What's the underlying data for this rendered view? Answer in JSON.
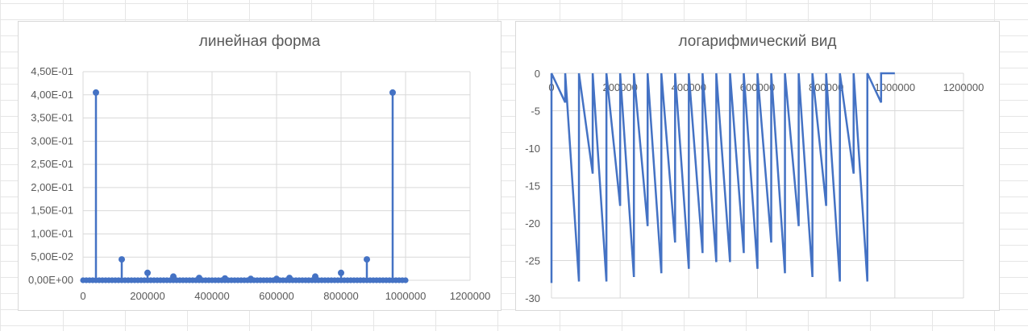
{
  "colors": {
    "series": "#4472c4",
    "gridline": "#d9d9d9",
    "axis_text": "#595959",
    "sheet_grid": "#e6e6e6"
  },
  "chart_data": [
    {
      "type": "scatter",
      "style": "stem-with-markers",
      "title": "линейная форма",
      "xlabel": "",
      "ylabel": "",
      "xlim": [
        0,
        1200000
      ],
      "ylim": [
        0,
        0.45
      ],
      "x_ticks": [
        0,
        200000,
        400000,
        600000,
        800000,
        1000000,
        1200000
      ],
      "x_tick_labels": [
        "0",
        "200000",
        "400000",
        "600000",
        "800000",
        "1000000",
        "1200000"
      ],
      "y_ticks": [
        0,
        0.05,
        0.1,
        0.15,
        0.2,
        0.25,
        0.3,
        0.35,
        0.4,
        0.45
      ],
      "y_tick_labels": [
        "0,00E+00",
        "5,00E-02",
        "1,00E-01",
        "1,50E-01",
        "2,00E-01",
        "2,50E-01",
        "3,00E-01",
        "3,50E-01",
        "4,00E-01",
        "4,50E-01"
      ],
      "grid": true,
      "legend": "none",
      "series": [
        {
          "x": [
            40000,
            120000,
            200000,
            280000,
            360000,
            440000,
            520000,
            600000,
            640000,
            720000,
            800000,
            880000,
            960000
          ],
          "y": [
            0.405,
            0.045,
            0.016,
            0.008,
            0.005,
            0.004,
            0.003,
            0.003,
            0.005,
            0.008,
            0.016,
            0.045,
            0.405
          ]
        }
      ],
      "baseline_markers": {
        "x_start": 0,
        "x_end": 1000000,
        "step": 10000,
        "y": 0
      }
    },
    {
      "type": "line",
      "style": "stem-lines-downward",
      "title": "логарифмический вид",
      "xlabel": "",
      "ylabel": "",
      "xlim": [
        0,
        1200000
      ],
      "ylim": [
        -30,
        0
      ],
      "x_ticks": [
        0,
        200000,
        400000,
        600000,
        800000,
        1000000,
        1200000
      ],
      "x_tick_labels": [
        "0",
        "200000",
        "400000",
        "600000",
        "800000",
        "1000000",
        "1200000"
      ],
      "x_axis_position": "top",
      "y_ticks": [
        0,
        -5,
        -10,
        -15,
        -20,
        -25,
        -30
      ],
      "y_tick_labels": [
        "0",
        "-5",
        "-10",
        "-15",
        "-20",
        "-25",
        "-30"
      ],
      "grid": true,
      "legend": "none",
      "series": [
        {
          "x": [
            0,
            40000,
            80000,
            120000,
            160000,
            200000,
            240000,
            280000,
            320000,
            360000,
            400000,
            440000,
            480000,
            520000,
            560000,
            600000,
            640000,
            680000,
            720000,
            760000,
            800000,
            840000,
            880000,
            920000,
            960000,
            1000000
          ],
          "y": [
            -28,
            -3.9,
            -27.8,
            -13.4,
            -27.8,
            -17.7,
            -27.2,
            -20.4,
            -26.7,
            -22.6,
            -26.1,
            -24.0,
            -25.2,
            -25.2,
            -24.0,
            -26.1,
            -22.6,
            -26.7,
            -20.4,
            -27.2,
            -17.7,
            -27.8,
            -13.4,
            -27.8,
            -3.9,
            0
          ]
        }
      ]
    }
  ]
}
